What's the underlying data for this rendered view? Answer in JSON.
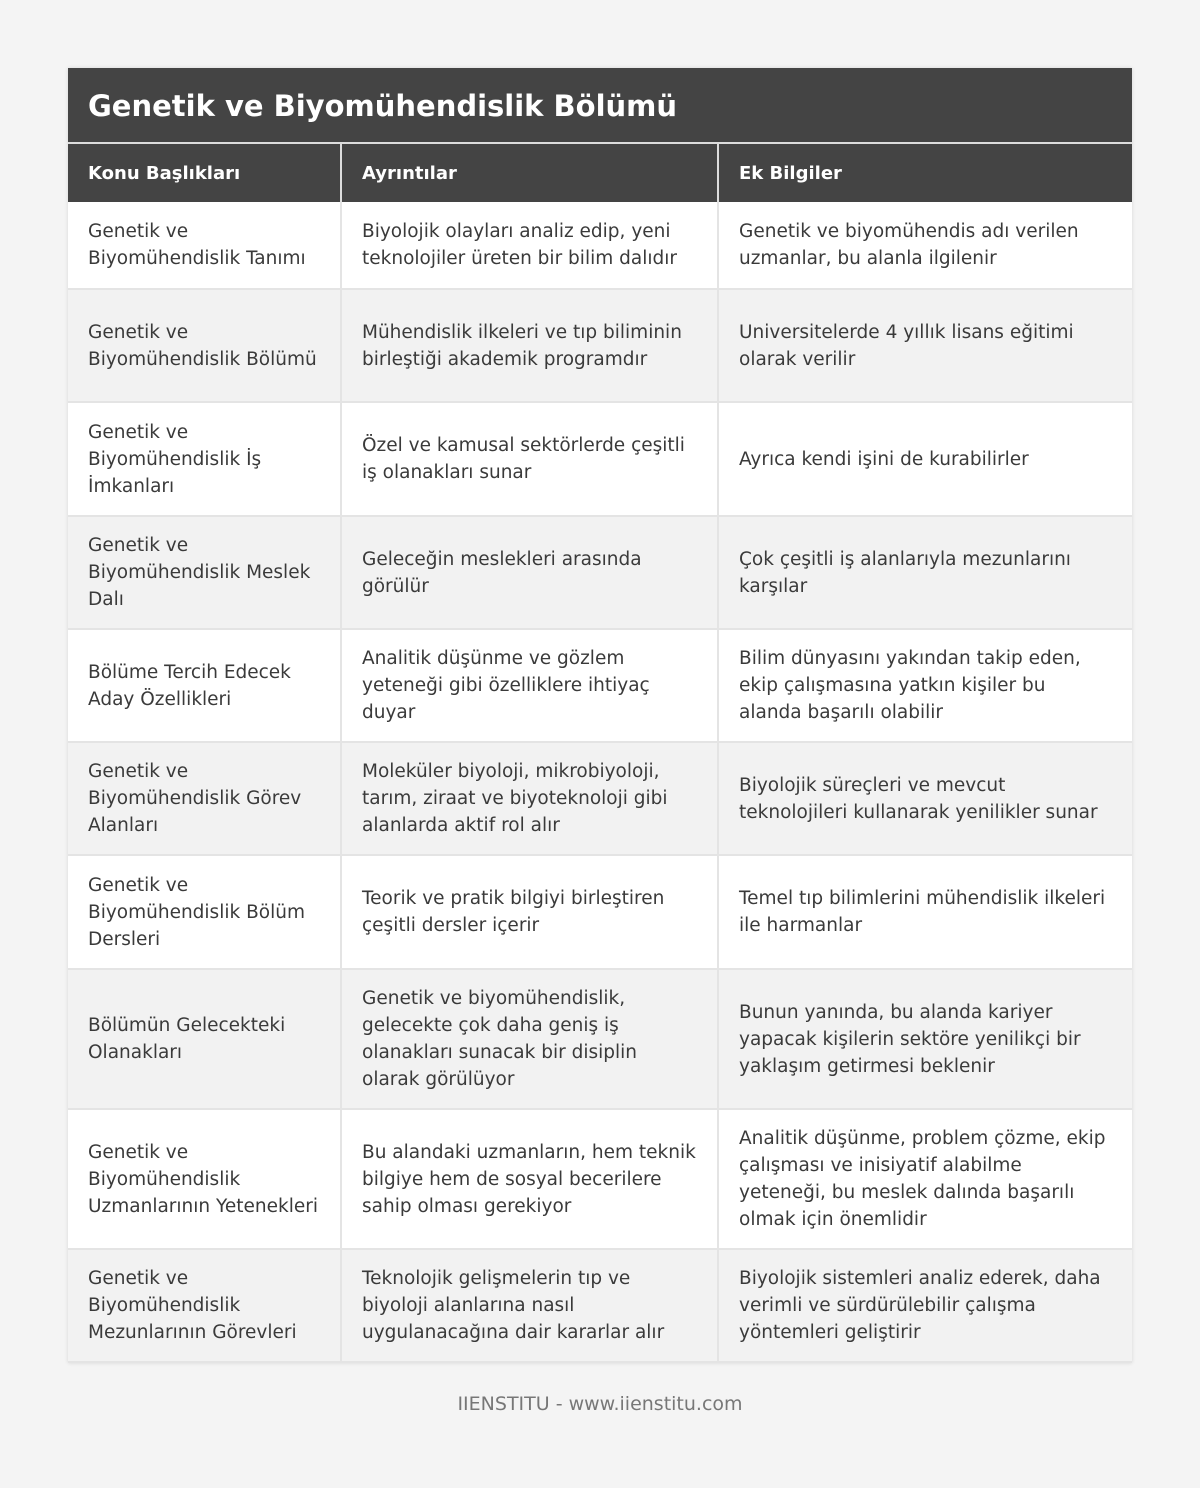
{
  "title": "Genetik ve Biyomühendislik Bölümü",
  "columns": [
    "Konu Başlıkları",
    "Ayrıntılar",
    "Ek Bilgiler"
  ],
  "rows": [
    [
      "Genetik ve Biyomühendislik Tanımı",
      "Biyolojik olayları analiz edip, yeni teknolojiler üreten bir bilim dalıdır",
      "Genetik ve biyomühendis adı verilen uzmanlar, bu alanla ilgilenir"
    ],
    [
      "Genetik ve Biyomühendislik Bölümü",
      "Mühendislik ilkeleri ve tıp biliminin birleştiği akademik programdır",
      "Universitelerde 4 yıllık lisans eğitimi olarak verilir"
    ],
    [
      "Genetik ve Biyomühendislik İş İmkanları",
      "Özel ve kamusal sektörlerde çeşitli iş olanakları sunar",
      "Ayrıca kendi işini de kurabilirler"
    ],
    [
      "Genetik ve Biyomühendislik Meslek Dalı",
      "Geleceğin meslekleri arasında görülür",
      "Çok çeşitli iş alanlarıyla mezunlarını karşılar"
    ],
    [
      "Bölüme Tercih Edecek Aday Özellikleri",
      "Analitik düşünme ve gözlem yeteneği gibi özelliklere ihtiyaç duyar",
      "Bilim dünyasını yakından takip eden, ekip çalışmasına yatkın kişiler bu alanda başarılı olabilir"
    ],
    [
      "Genetik ve Biyomühendislik Görev Alanları",
      "Moleküler biyoloji, mikrobiyoloji, tarım, ziraat ve biyoteknoloji gibi alanlarda aktif rol alır",
      "Biyolojik süreçleri ve mevcut teknolojileri kullanarak yenilikler sunar"
    ],
    [
      "Genetik ve Biyomühendislik Bölüm Dersleri",
      "Teorik ve pratik bilgiyi birleştiren çeşitli dersler içerir",
      "Temel tıp bilimlerini mühendislik ilkeleri ile harmanlar"
    ],
    [
      "Bölümün Gelecekteki Olanakları",
      "Genetik ve biyomühendislik, gelecekte çok daha geniş iş olanakları sunacak bir disiplin olarak görülüyor",
      "Bunun yanında, bu alanda kariyer yapacak kişilerin sektöre yenilikçi bir yaklaşım getirmesi beklenir"
    ],
    [
      "Genetik ve Biyomühendislik Uzmanlarının Yetenekleri",
      "Bu alandaki uzmanların, hem teknik bilgiye hem de sosyal becerilere sahip olması gerekiyor",
      "Analitik düşünme, problem çözme, ekip çalışması ve inisiyatif alabilme yeteneği, bu meslek dalında başarılı olmak için önemlidir"
    ],
    [
      "Genetik ve Biyomühendislik Mezunlarının Görevleri",
      "Teknolojik gelişmelerin tıp ve biyoloji alanlarına nasıl uygulanacağına dair kararlar alır",
      "Biyolojik sistemleri analiz ederek, daha verimli ve sürdürülebilir çalışma yöntemleri geliştirir"
    ]
  ],
  "footer": "IIENSTITU - www.iienstitu.com"
}
